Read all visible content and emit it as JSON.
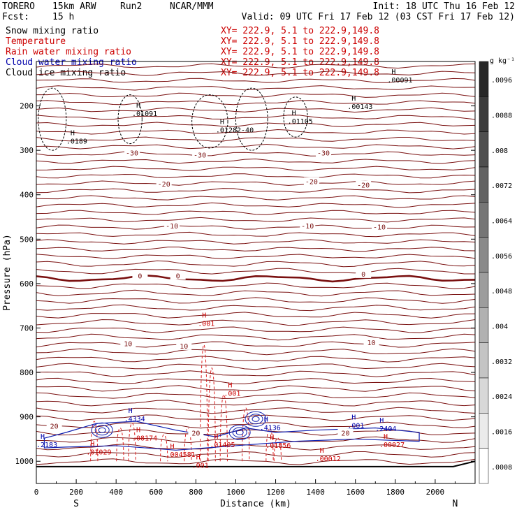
{
  "header": {
    "model": "TORERO",
    "resolution": "15km ARW",
    "run": "Run2",
    "institution": "NCAR/MMM",
    "init": "Init: 18 UTC Thu 16 Feb 12",
    "fcst_label": "Fcst:",
    "fcst_value": "15 h",
    "valid": "Valid: 09 UTC Fri 17 Feb 12 (03 CST Fri 17 Feb 12)"
  },
  "legend": [
    {
      "label": "Snow mixing ratio",
      "xy": "XY= 222.9,  5.1 to 222.9,149.8",
      "color": "#000000"
    },
    {
      "label": "Temperature",
      "xy": "XY= 222.9,  5.1 to 222.9,149.8",
      "color": "#cc0000"
    },
    {
      "label": "Rain water mixing ratio",
      "xy": "XY= 222.9,  5.1 to 222.9,149.8",
      "color": "#cc0000"
    },
    {
      "label": "Cloud water mixing ratio",
      "xy": "XY= 222.9,  5.1 to 222.9,149.8",
      "color": "#0000aa"
    },
    {
      "label": "Cloud ice mixing ratio",
      "xy": "XY= 222.9,  5.1 to 222.9,149.8",
      "color": "#000000"
    }
  ],
  "chart_data": {
    "type": "contour cross-section",
    "xlabel": "Distance (km)",
    "ylabel": "Pressure (hPa)",
    "x_ticks": [
      0,
      200,
      400,
      600,
      800,
      1000,
      1200,
      1400,
      1600,
      1800,
      2000
    ],
    "xlim": [
      0,
      2200
    ],
    "y_ticks": [
      200,
      300,
      400,
      500,
      600,
      700,
      800,
      900,
      1000
    ],
    "ylim": [
      1050,
      100
    ],
    "endpoints": {
      "left": "S",
      "right": "N"
    },
    "temperature_labels": [
      {
        "value": "-30",
        "x": 480,
        "p": 305
      },
      {
        "value": "-30",
        "x": 820,
        "p": 310
      },
      {
        "value": "-30",
        "x": 1440,
        "p": 305
      },
      {
        "value": "-20",
        "x": 640,
        "p": 375
      },
      {
        "value": "-20",
        "x": 1380,
        "p": 370
      },
      {
        "value": "-20",
        "x": 1640,
        "p": 378
      },
      {
        "value": "-10",
        "x": 680,
        "p": 470
      },
      {
        "value": "-10",
        "x": 1360,
        "p": 470
      },
      {
        "value": "-10",
        "x": 1720,
        "p": 472
      },
      {
        "value": "0",
        "x": 520,
        "p": 582
      },
      {
        "value": "0",
        "x": 710,
        "p": 582
      },
      {
        "value": "0",
        "x": 1640,
        "p": 578
      },
      {
        "value": "10",
        "x": 460,
        "p": 735
      },
      {
        "value": "10",
        "x": 740,
        "p": 740
      },
      {
        "value": "10",
        "x": 1680,
        "p": 732
      },
      {
        "value": "20",
        "x": 90,
        "p": 920
      },
      {
        "value": "20",
        "x": 800,
        "p": 936
      },
      {
        "value": "20",
        "x": 1550,
        "p": 936
      }
    ],
    "maxima_labels": [
      {
        "value": ".0189",
        "x": 150,
        "p": 285,
        "color": "#000000"
      },
      {
        "value": ".01091",
        "x": 480,
        "p": 223,
        "color": "#000000"
      },
      {
        "value": ".01282-40",
        "x": 900,
        "p": 260,
        "color": "#000000"
      },
      {
        "value": ".01105",
        "x": 1260,
        "p": 240,
        "color": "#000000"
      },
      {
        "value": ".00143",
        "x": 1560,
        "p": 207,
        "color": "#000000"
      },
      {
        "value": ".00091",
        "x": 1760,
        "p": 147,
        "color": "#000000"
      },
      {
        "value": ".4334",
        "x": 440,
        "p": 910,
        "color": "#0000aa"
      },
      {
        "value": ".4136",
        "x": 1120,
        "p": 930,
        "color": "#0000aa"
      },
      {
        "value": ".2404",
        "x": 1700,
        "p": 932,
        "color": "#0000aa"
      },
      {
        "value": ".001",
        "x": 1560,
        "p": 925,
        "color": "#0000aa"
      },
      {
        "value": ".2183",
        "x": 0,
        "p": 968,
        "color": "#0000aa"
      },
      {
        "value": ".001",
        "x": 810,
        "p": 695,
        "color": "#cc0000"
      },
      {
        "value": ".001",
        "x": 940,
        "p": 853,
        "color": "#cc0000"
      },
      {
        "value": ".08174",
        "x": 480,
        "p": 953,
        "color": "#cc0000"
      },
      {
        "value": ".01029",
        "x": 250,
        "p": 985,
        "color": "#cc0000"
      },
      {
        "value": ".004581",
        "x": 650,
        "p": 990,
        "color": "#cc0000"
      },
      {
        "value": ".01405",
        "x": 870,
        "p": 968,
        "color": "#cc0000"
      },
      {
        "value": ".01856",
        "x": 1150,
        "p": 970,
        "color": "#cc0000"
      },
      {
        "value": ".00012",
        "x": 1400,
        "p": 1000,
        "color": "#cc0000"
      },
      {
        "value": ".00027",
        "x": 1720,
        "p": 968,
        "color": "#cc0000"
      },
      {
        "value": ".001",
        "x": 780,
        "p": 1015,
        "color": "#cc0000"
      }
    ]
  },
  "colorbar": {
    "unit": "g kg⁻¹",
    "labels": [
      ".0096",
      ".0088",
      ".008",
      ".0072",
      ".0064",
      ".0056",
      ".0048",
      ".004",
      ".0032",
      ".0024",
      ".0016",
      ".0008"
    ]
  },
  "colors": {
    "temperature": "#7a1010",
    "rain": "#dd2222",
    "cloud_water": "#1020b0",
    "snow": "#000000",
    "ground": "#000000"
  }
}
